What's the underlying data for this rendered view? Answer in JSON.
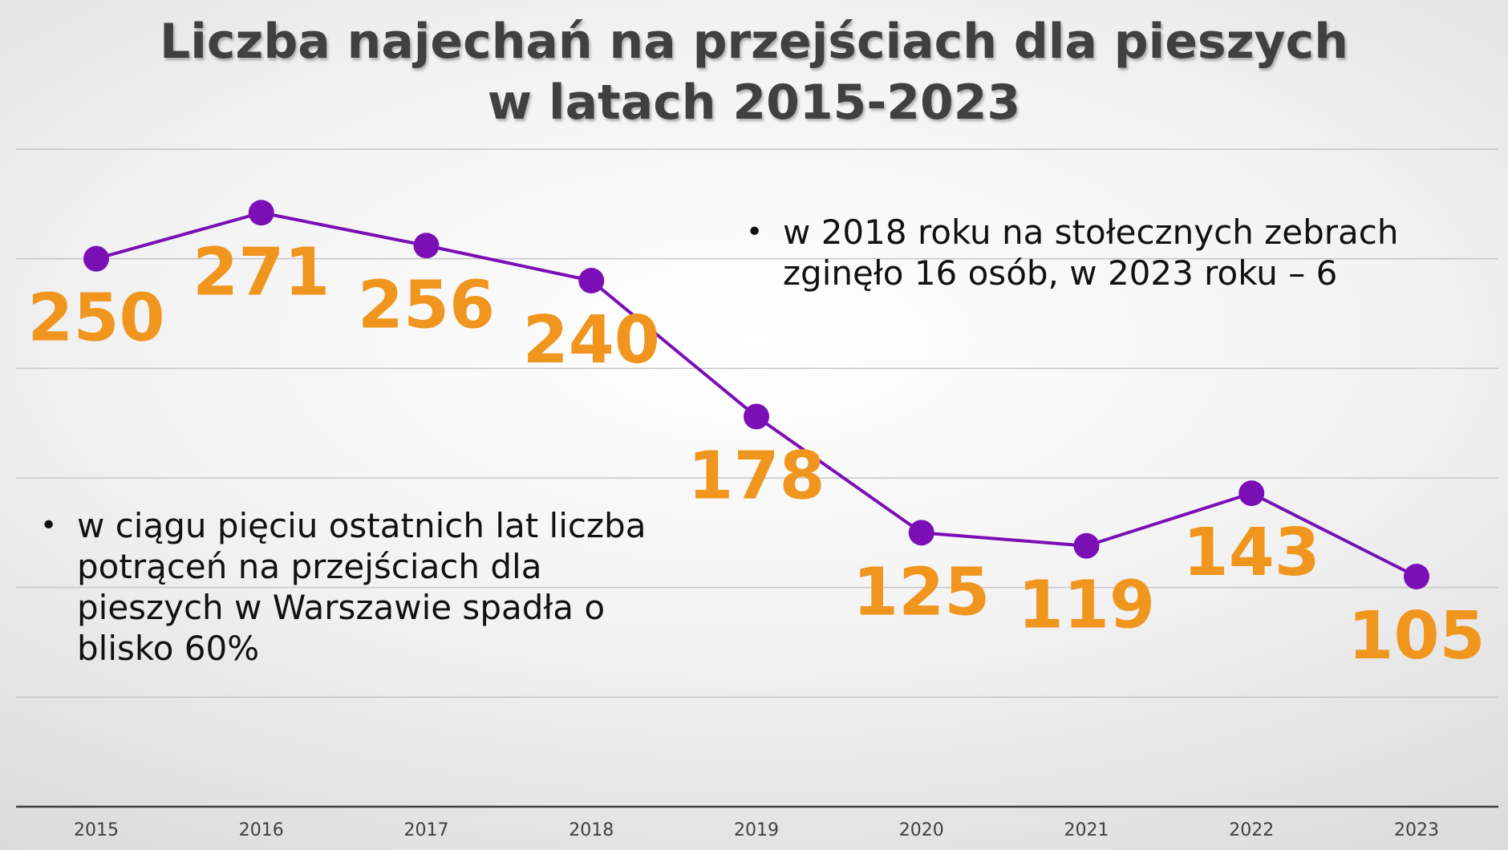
{
  "title_line1": "Liczba najechań na przejściach dla pieszych",
  "title_line2": "w latach 2015-2023",
  "notes": [
    "w 2018 roku na stołecznych zebrach zginęło 16 osób, w 2023 roku – 6",
    "w ciągu pięciu ostatnich lat liczba potrąceń na przejściach dla pieszych w Warszawie spadła o blisko 60%"
  ],
  "colors": {
    "line": "#7a0fb5",
    "marker": "#7a0fb5",
    "data_label": "#f0961e",
    "title": "#404040",
    "gridline": "#c6c6c6",
    "axis": "#404040"
  },
  "chart_data": {
    "type": "line",
    "categories": [
      "2015",
      "2016",
      "2017",
      "2018",
      "2019",
      "2020",
      "2021",
      "2022",
      "2023"
    ],
    "series": [
      {
        "values": [
          250,
          271,
          256,
          240,
          178,
          125,
          119,
          143,
          105
        ]
      }
    ],
    "data_labels": [
      "250",
      "271",
      "256",
      "240",
      "178",
      "125",
      "119",
      "143",
      "105"
    ],
    "ylim": [
      0,
      300
    ],
    "grid": true,
    "legend": "none",
    "xlabel": "",
    "ylabel": ""
  }
}
